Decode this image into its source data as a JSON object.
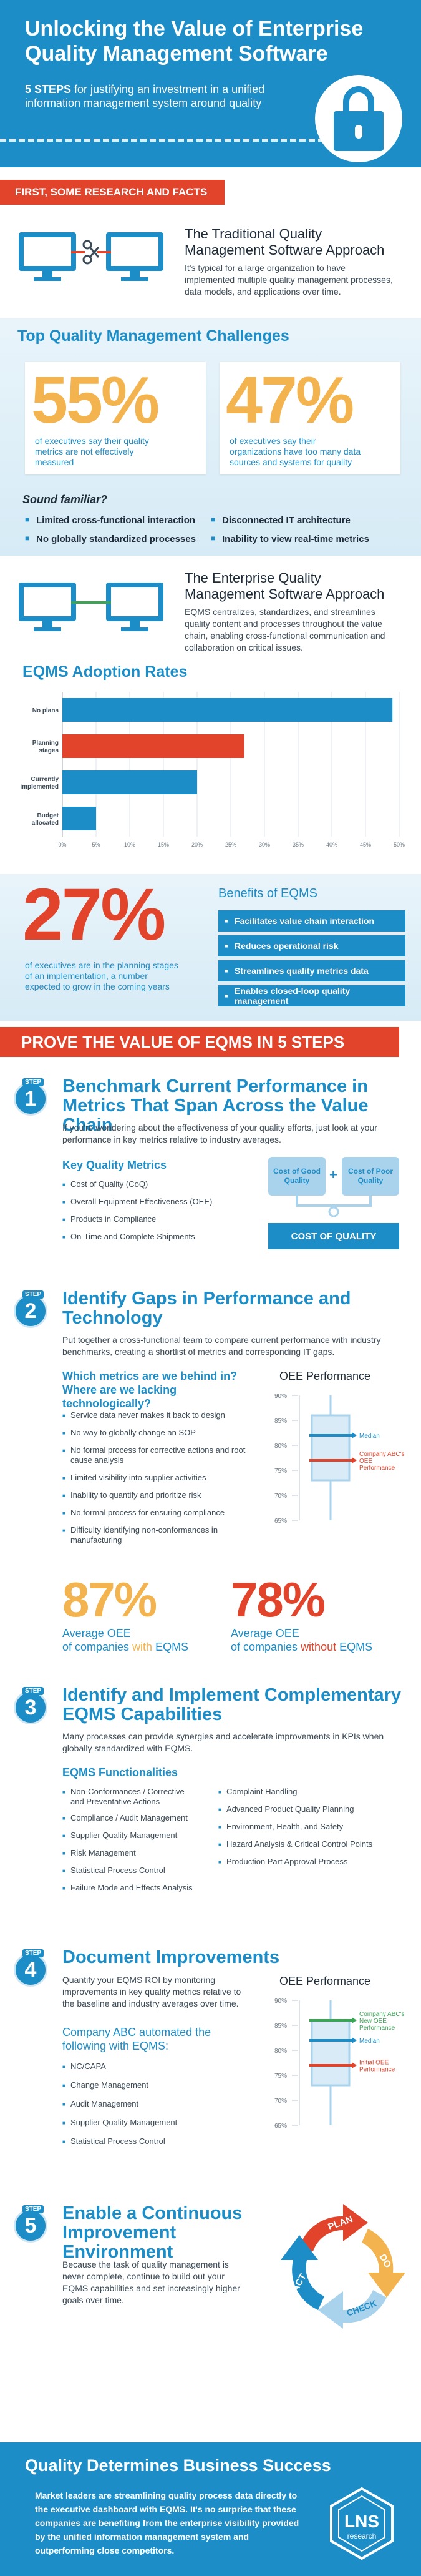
{
  "hero": {
    "title_line1": "Unlocking the Value of Enterprise",
    "title_line2": "Quality Management Software",
    "subtitle_bold": "5 STEPS",
    "subtitle_rest": " for justifying an investment in a unified information management system around quality"
  },
  "research_banner": "FIRST, SOME RESEARCH AND FACTS",
  "traditional": {
    "title": "The Traditional Quality Management Software Approach",
    "desc": "It's typical for a large organization to have implemented multiple quality management processes, data models, and applications over time."
  },
  "challenges": {
    "title": "Top Quality Management Challenges",
    "stat1": {
      "value": "55%",
      "text": "of executives say their quality metrics are not effectively measured"
    },
    "stat2": {
      "value": "47%",
      "text": "of executives say their organizations have too many data sources and systems for quality"
    },
    "sound_familiar": "Sound familiar?",
    "bullets": [
      "Limited cross-functional interaction",
      "Disconnected IT architecture",
      "No globally standardized processes",
      "Inability to view real-time metrics"
    ]
  },
  "eqms": {
    "title": "The Enterprise Quality Management Software Approach",
    "desc": "EQMS centralizes, standardizes, and streamlines quality content and processes throughout the value chain, enabling cross-functional communication and collaboration on critical issues."
  },
  "chart_data": {
    "type": "bar",
    "title": "EQMS Adoption Rates",
    "orientation": "horizontal",
    "categories": [
      "No plans",
      "Planning stages",
      "Currently implemented",
      "Budget allocated"
    ],
    "values": [
      49,
      27,
      20,
      5
    ],
    "xlim": [
      0,
      50
    ],
    "ticks": [
      "0%",
      "5%",
      "10%",
      "15%",
      "20%",
      "25%",
      "30%",
      "35%",
      "40%",
      "45%",
      "50%"
    ],
    "colors": [
      "#1d8dc7",
      "#e2442b",
      "#1d8dc7",
      "#1d8dc7"
    ]
  },
  "planning": {
    "value": "27%",
    "text": "of executives are in the planning stages of an implementation, a number expected to grow in the coming years"
  },
  "benefits": {
    "title": "Benefits of EQMS",
    "items": [
      "Facilitates value chain interaction",
      "Reduces operational risk",
      "Streamlines quality metrics data",
      "Enables closed-loop quality management"
    ]
  },
  "prove_banner": "PROVE THE VALUE OF EQMS IN 5 STEPS",
  "step_label": "STEP",
  "step1": {
    "num": "1",
    "title": "Benchmark Current Performance in Metrics That Span Across the Value Chain",
    "desc": "If you're wondering about the effectiveness of your quality efforts, just look at your performance in key metrics relative to industry averages.",
    "metrics_title": "Key Quality Metrics",
    "metrics": [
      "Cost of Quality (CoQ)",
      "Overall Equipment Effectiveness (OEE)",
      "Products in Compliance",
      "On-Time and Complete Shipments"
    ],
    "good": "Cost of Good Quality",
    "plus": "+",
    "poor": "Cost of Poor Quality",
    "total": "COST OF QUALITY"
  },
  "step2": {
    "num": "2",
    "title": "Identify Gaps in Performance and Technology",
    "desc": "Put together a cross-functional team to compare current performance with industry benchmarks, creating a shortlist of metrics and corresponding IT gaps.",
    "question": "Which metrics are we behind in? Where are we lacking technologically?",
    "items": [
      "Service data never makes it back to design",
      "No way to globally change an SOP",
      "No formal process for corrective actions and root cause analysis",
      "Limited visibility into supplier activities",
      "Inability to quantify and prioritize risk",
      "No formal process for ensuring compliance",
      "Difficulty identifying non-conformances in manufacturing"
    ],
    "oee_title": "OEE Performance",
    "oee_ticks": [
      "90%",
      "85%",
      "80%",
      "75%",
      "70%",
      "65%"
    ],
    "median_label": "Median",
    "company_label": "Company ABC's OEE Performance",
    "with_value": "87%",
    "with_caption_1": "Average OEE",
    "with_caption_2": "of companies ",
    "with_word": "with",
    "with_caption_3": " EQMS",
    "without_value": "78%",
    "without_word": "without"
  },
  "step3": {
    "num": "3",
    "title": "Identify and Implement Complementary EQMS Capabilities",
    "desc": "Many processes can provide synergies and accelerate improvements in KPIs when globally standardized with EQMS.",
    "func_title": "EQMS Functionalities",
    "col1": [
      "Non-Conformances / Corrective and Preventative Actions",
      "Compliance / Audit Management",
      "Supplier Quality Management",
      "Risk Management",
      "Statistical Process Control",
      "Failure Mode and Effects Analysis"
    ],
    "col2": [
      "Complaint Handling",
      "Advanced Product Quality Planning",
      "Environment, Health, and Safety",
      "Hazard Analysis & Critical Control Points",
      "Production Part Approval Process"
    ]
  },
  "step4": {
    "num": "4",
    "title": "Document Improvements",
    "desc": "Quantify your EQMS ROI by monitoring improvements in key quality metrics relative to the baseline and industry averages over time.",
    "company_title": "Company ABC automated the following with EQMS:",
    "items": [
      "NC/CAPA",
      "Change Management",
      "Audit Management",
      "Supplier Quality Management",
      "Statistical Process Control"
    ],
    "oee_title": "OEE Performance",
    "oee_ticks": [
      "90%",
      "85%",
      "80%",
      "75%",
      "70%",
      "65%"
    ],
    "new_label": "Company ABC's New OEE Performance",
    "median_label": "Median",
    "initial_label": "Initial OEE Performance"
  },
  "step5": {
    "num": "5",
    "title": "Enable a Continuous Improvement Environment",
    "desc": "Because the task of quality management is never complete, continue to build out your EQMS capabilities and set increasingly higher goals over time.",
    "cycle": [
      "PLAN",
      "DO",
      "CHECK",
      "ACT"
    ]
  },
  "final": {
    "title": "Quality Determines Business Success",
    "text": "Market leaders are streamlining quality process data directly to the executive dashboard with EQMS. It's no surprise that these companies are benefiting from the enterprise visibility provided by the unified information management system and outperforming close competitors.",
    "logo_text": "LNS",
    "logo_sub": "research"
  },
  "colors": {
    "blue": "#1d8dc7",
    "red": "#e2442b",
    "orange": "#f3b34e",
    "green": "#3aa655"
  }
}
